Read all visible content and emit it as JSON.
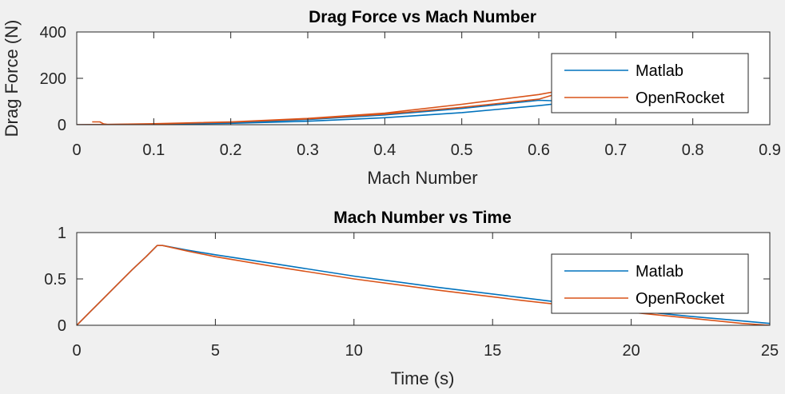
{
  "colors": {
    "figure_bg": "#f0f0f0",
    "axes_bg": "#ffffff",
    "axis_color": "#262626",
    "series": [
      "#0072bd",
      "#d95319"
    ]
  },
  "chart_data": [
    {
      "type": "line",
      "title": "Drag Force vs Mach Number",
      "xlabel": "Mach Number",
      "ylabel": "Drag Force (N)",
      "xlim": [
        0,
        0.9
      ],
      "ylim": [
        0,
        400
      ],
      "xticks": [
        0,
        0.1,
        0.2,
        0.3,
        0.4,
        0.5,
        0.6,
        0.7,
        0.8,
        0.9
      ],
      "xtick_labels": [
        "0",
        "0.1",
        "0.2",
        "0.3",
        "0.4",
        "0.5",
        "0.6",
        "0.7",
        "0.8",
        "0.9"
      ],
      "yticks": [
        0,
        200,
        400
      ],
      "ytick_labels": [
        "0",
        "200",
        "400"
      ],
      "grid": false,
      "legend_position": "top-right",
      "series": [
        {
          "name": "Matlab",
          "x": [
            0,
            0.1,
            0.2,
            0.3,
            0.4,
            0.5,
            0.6,
            0.65,
            0.6,
            0.5,
            0.4,
            0.3,
            0.2,
            0.1,
            0.02
          ],
          "y": [
            0,
            2,
            6,
            15,
            30,
            52,
            82,
            100,
            105,
            70,
            42,
            22,
            9,
            2,
            0
          ]
        },
        {
          "name": "OpenRocket",
          "x": [
            0.02,
            0.03,
            0.035,
            0.04,
            0.1,
            0.2,
            0.3,
            0.4,
            0.5,
            0.6,
            0.65,
            0.6,
            0.5,
            0.4,
            0.3,
            0.2,
            0.1,
            0.05,
            0
          ],
          "y": [
            12,
            12,
            3,
            1,
            4,
            12,
            27,
            50,
            88,
            130,
            160,
            110,
            75,
            46,
            25,
            11,
            3,
            1,
            0
          ]
        }
      ]
    },
    {
      "type": "line",
      "title": "Mach Number vs Time",
      "xlabel": "Time (s)",
      "ylabel": "",
      "xlim": [
        0,
        25
      ],
      "ylim": [
        0,
        1
      ],
      "xticks": [
        0,
        5,
        10,
        15,
        20,
        25
      ],
      "xtick_labels": [
        "0",
        "5",
        "10",
        "15",
        "20",
        "25"
      ],
      "yticks": [
        0,
        0.5,
        1
      ],
      "ytick_labels": [
        "0",
        "0.5",
        "1"
      ],
      "grid": false,
      "legend_position": "top-right",
      "series": [
        {
          "name": "Matlab",
          "x": [
            0,
            0.5,
            1,
            1.5,
            2,
            2.5,
            2.9,
            3.1,
            4,
            5,
            7,
            10,
            13,
            16,
            19,
            22,
            25
          ],
          "y": [
            0,
            0.15,
            0.3,
            0.45,
            0.6,
            0.74,
            0.86,
            0.86,
            0.81,
            0.76,
            0.67,
            0.53,
            0.41,
            0.3,
            0.19,
            0.1,
            0.02
          ]
        },
        {
          "name": "OpenRocket",
          "x": [
            0,
            0.5,
            1,
            1.5,
            2,
            2.5,
            2.9,
            3.1,
            4,
            5,
            7,
            10,
            13,
            16,
            19,
            22,
            24,
            25
          ],
          "y": [
            0,
            0.15,
            0.3,
            0.45,
            0.6,
            0.74,
            0.86,
            0.86,
            0.8,
            0.74,
            0.64,
            0.5,
            0.38,
            0.27,
            0.17,
            0.08,
            0.02,
            0
          ]
        }
      ]
    }
  ]
}
